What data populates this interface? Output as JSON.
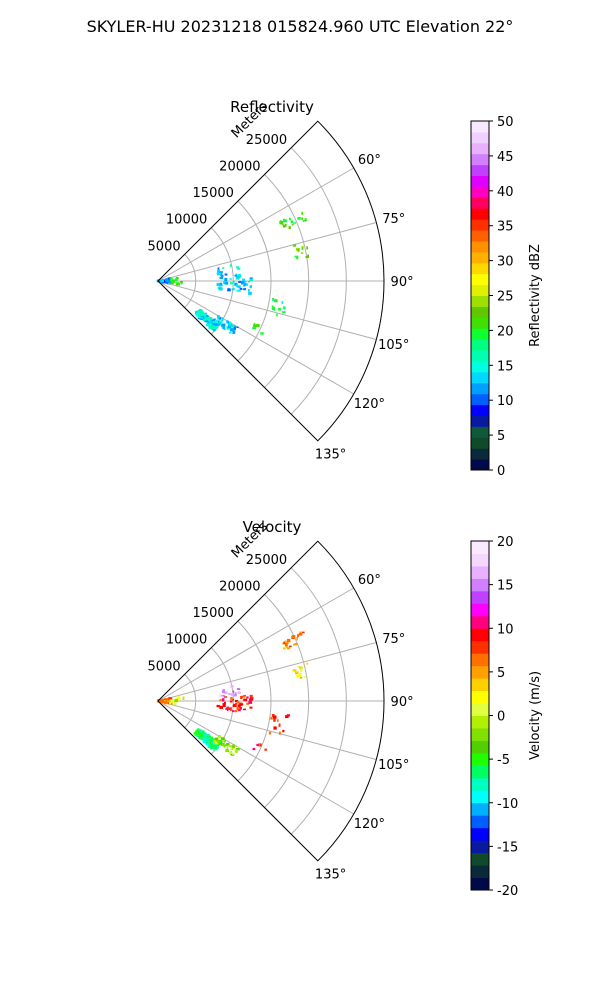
{
  "figure_title": "SKYLER-HU  20231218  015824.960 UTC Elevation 22°",
  "colors": {
    "axis": "#000000",
    "grid": "#b0b0b0",
    "reflectivity_scale": [
      "#000a4a",
      "#0a2a3a",
      "#0f4a2a",
      "#0f5a3a",
      "#0a1aa0",
      "#0000ff",
      "#0060ff",
      "#00a0ff",
      "#00d8ff",
      "#00ffe0",
      "#00ffb0",
      "#00ff80",
      "#10ff30",
      "#40e000",
      "#60c800",
      "#a0e000",
      "#e0f000",
      "#ffff00",
      "#ffd800",
      "#ffb000",
      "#ff9000",
      "#ff6000",
      "#ff3000",
      "#ff0000",
      "#ff0060",
      "#ff00c0",
      "#e000ff",
      "#c040ff",
      "#d080ff",
      "#e8b0ff",
      "#f0d0ff",
      "#f8e8ff"
    ],
    "velocity_scale": [
      "#000a4a",
      "#0a2a3a",
      "#0f4a2a",
      "#0a1aa0",
      "#0000ff",
      "#0060ff",
      "#00b0ff",
      "#00ffff",
      "#00ffc0",
      "#00ff60",
      "#20ff00",
      "#50d000",
      "#80e000",
      "#b0f000",
      "#e0ff40",
      "#ffff00",
      "#ffd000",
      "#ffa000",
      "#ff7000",
      "#ff3000",
      "#ff0000",
      "#ff0080",
      "#ff00ff",
      "#c040ff",
      "#d080ff",
      "#e8b0ff",
      "#f4d8ff",
      "#fbeaff"
    ]
  },
  "chart_data": [
    {
      "type": "polar-sector",
      "name": "reflectivity",
      "title": "Reflectivity",
      "radial_label": "Meters",
      "radial_ticks": [
        5000,
        10000,
        15000,
        20000,
        25000
      ],
      "radial_tick_labels": [
        "5000",
        "10000",
        "15000",
        "20000",
        "25000"
      ],
      "rlim": [
        0,
        30000
      ],
      "theta_ticks_deg": [
        60,
        75,
        90,
        105,
        120,
        135
      ],
      "theta_tick_labels": [
        "60°",
        "75°",
        "90°",
        "105°",
        "120°",
        "135°"
      ],
      "theta_range_deg": [
        45,
        135
      ],
      "colorbar": {
        "label": "Reflectivity dBZ",
        "range": [
          0,
          50
        ],
        "ticks": [
          0,
          5,
          10,
          15,
          20,
          25,
          30,
          35,
          40,
          45,
          50
        ]
      },
      "echo_clusters": [
        {
          "az": 128,
          "r": [
            6500,
            10000
          ],
          "az_spread": 3.5,
          "value": 14,
          "count": 140
        },
        {
          "az": 123,
          "r": [
            9000,
            12500
          ],
          "az_spread": 3,
          "value": 13,
          "count": 40
        },
        {
          "az": 92,
          "r": [
            8000,
            12500
          ],
          "az_spread": 6,
          "value": 13,
          "count": 45
        },
        {
          "az": 82,
          "r": [
            8000,
            11000
          ],
          "az_spread": 4,
          "value": 13,
          "count": 15
        },
        {
          "az": 66,
          "r": [
            18000,
            21500
          ],
          "az_spread": 2,
          "value": 20,
          "count": 20
        },
        {
          "az": 78,
          "r": [
            18500,
            20500
          ],
          "az_spread": 3,
          "value": 21,
          "count": 12
        },
        {
          "az": 100,
          "r": [
            15000,
            17500
          ],
          "az_spread": 6,
          "value": 18,
          "count": 12
        },
        {
          "az": 115,
          "r": [
            14000,
            16000
          ],
          "az_spread": 2,
          "value": 20,
          "count": 5
        },
        {
          "az": 90,
          "r": [
            0,
            1800
          ],
          "az_spread": 12,
          "value": 12,
          "count": 70
        },
        {
          "az": 90,
          "r": [
            1500,
            3500
          ],
          "az_spread": 10,
          "value": 20,
          "count": 10
        }
      ]
    },
    {
      "type": "polar-sector",
      "name": "velocity",
      "title": "Velocity",
      "radial_label": "Meters",
      "radial_ticks": [
        5000,
        10000,
        15000,
        20000,
        25000
      ],
      "radial_tick_labels": [
        "5000",
        "10000",
        "15000",
        "20000",
        "25000"
      ],
      "rlim": [
        0,
        30000
      ],
      "theta_ticks_deg": [
        60,
        75,
        90,
        105,
        120,
        135
      ],
      "theta_tick_labels": [
        "60°",
        "75°",
        "90°",
        "105°",
        "120°",
        "135°"
      ],
      "theta_range_deg": [
        45,
        135
      ],
      "colorbar": {
        "label": "Velocity (m/s)",
        "range": [
          -20,
          20
        ],
        "ticks": [
          -20,
          -15,
          -10,
          -5,
          0,
          5,
          10,
          15,
          20
        ]
      },
      "echo_clusters": [
        {
          "az": 128,
          "r": [
            6500,
            10000
          ],
          "az_spread": 3.5,
          "value": -7,
          "count": 140
        },
        {
          "az": 123,
          "r": [
            9000,
            12500
          ],
          "az_spread": 3,
          "value": -2,
          "count": 40
        },
        {
          "az": 92,
          "r": [
            8000,
            12500
          ],
          "az_spread": 6,
          "value": 9,
          "count": 45
        },
        {
          "az": 82,
          "r": [
            8000,
            11000
          ],
          "az_spread": 4,
          "value": 16,
          "count": 15
        },
        {
          "az": 66,
          "r": [
            18000,
            21500
          ],
          "az_spread": 2,
          "value": 6,
          "count": 20
        },
        {
          "az": 78,
          "r": [
            18500,
            20500
          ],
          "az_spread": 3,
          "value": 3,
          "count": 12
        },
        {
          "az": 100,
          "r": [
            15000,
            17500
          ],
          "az_spread": 6,
          "value": 8,
          "count": 12
        },
        {
          "az": 115,
          "r": [
            14000,
            16000
          ],
          "az_spread": 2,
          "value": 9,
          "count": 5
        },
        {
          "az": 90,
          "r": [
            0,
            1800
          ],
          "az_spread": 12,
          "value": 6,
          "count": 70
        },
        {
          "az": 90,
          "r": [
            1500,
            3500
          ],
          "az_spread": 10,
          "value": 0,
          "count": 10
        }
      ]
    }
  ]
}
